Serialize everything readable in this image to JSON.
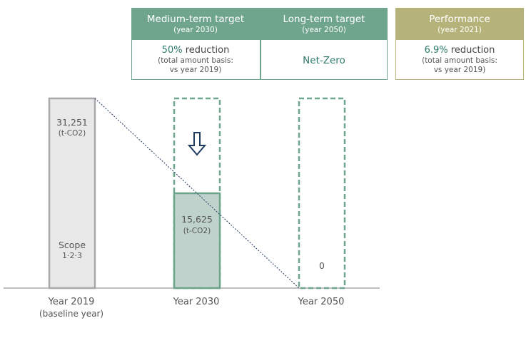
{
  "colors": {
    "target_header": "#6fa58d",
    "target_border": "#6fa58d",
    "perf_header": "#b5b37a",
    "perf_border": "#b5b37a",
    "accent_text": "#2e7a6a",
    "baseline_fill": "#e8e8e8",
    "baseline_stroke": "#a9a9a9",
    "target_fill": "#bfd2cc",
    "target_stroke": "#6fa58d",
    "arrow": "#1e3a5f"
  },
  "targets": {
    "medium": {
      "title": "Medium-term target",
      "subtitle": "(year 2030)",
      "value_pct": "50%",
      "value_text": " reduction",
      "note1": "(total amount basis:",
      "note2": "vs year 2019)"
    },
    "long": {
      "title": "Long-term target",
      "subtitle": "(year 2050)",
      "value": "Net-Zero"
    },
    "performance": {
      "title": "Performance",
      "subtitle": "(year 2021)",
      "value_pct": "6.9%",
      "value_text": " reduction",
      "note1": "(total amount basis:",
      "note2": "vs year 2019)"
    }
  },
  "arrow_icon": "down-arrow-icon",
  "chart_data": {
    "type": "bar",
    "categories": [
      "Year 2019",
      "Year 2030",
      "Year 2050"
    ],
    "category_sublabels": [
      "(baseline year)",
      "",
      ""
    ],
    "values": [
      31251,
      15625,
      0
    ],
    "value_labels": [
      "31,251",
      "15,625",
      "0"
    ],
    "unit": "(t-CO2)",
    "scope_label1": "Scope",
    "scope_label2": "1·2·3",
    "ylim": [
      0,
      31251
    ],
    "grid": false,
    "legend": "none"
  }
}
